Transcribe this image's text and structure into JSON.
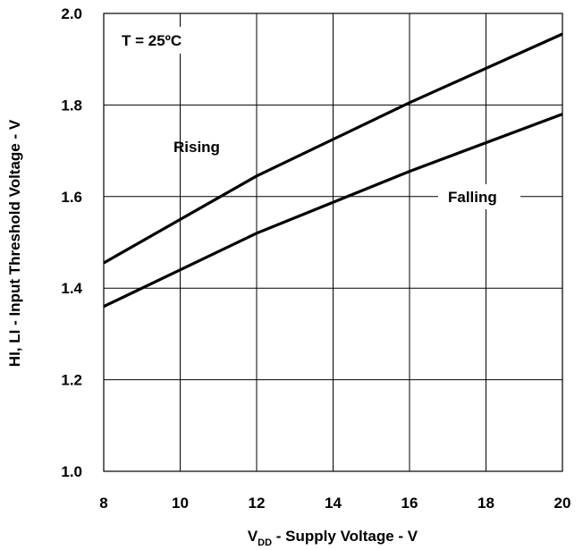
{
  "chart_data": {
    "type": "line",
    "title": "",
    "xlabel": {
      "main": "V",
      "subscript": "DD",
      "rest": " - Supply Voltage - V"
    },
    "ylabel": "HI, LI - Input Threshold Voltage - V",
    "xlim": [
      8,
      20
    ],
    "ylim": [
      1.0,
      2.0
    ],
    "x_ticks": [
      8,
      10,
      12,
      14,
      16,
      18,
      20
    ],
    "x_tick_labels": [
      "8",
      "10",
      "12",
      "14",
      "16",
      "18",
      "20"
    ],
    "y_ticks": [
      1.0,
      1.2,
      1.4,
      1.6,
      1.8,
      2.0
    ],
    "y_tick_labels": [
      "1.0",
      "1.2",
      "1.4",
      "1.6",
      "1.8",
      "2.0"
    ],
    "grid": true,
    "annotations": {
      "condition": "T = 25ºC",
      "rising": "Rising",
      "falling": "Falling"
    },
    "series": [
      {
        "name": "Rising",
        "x": [
          8,
          12,
          16,
          20
        ],
        "y": [
          1.455,
          1.645,
          1.805,
          1.955
        ]
      },
      {
        "name": "Falling",
        "x": [
          8,
          12,
          16,
          20
        ],
        "y": [
          1.36,
          1.52,
          1.655,
          1.78
        ]
      }
    ]
  }
}
